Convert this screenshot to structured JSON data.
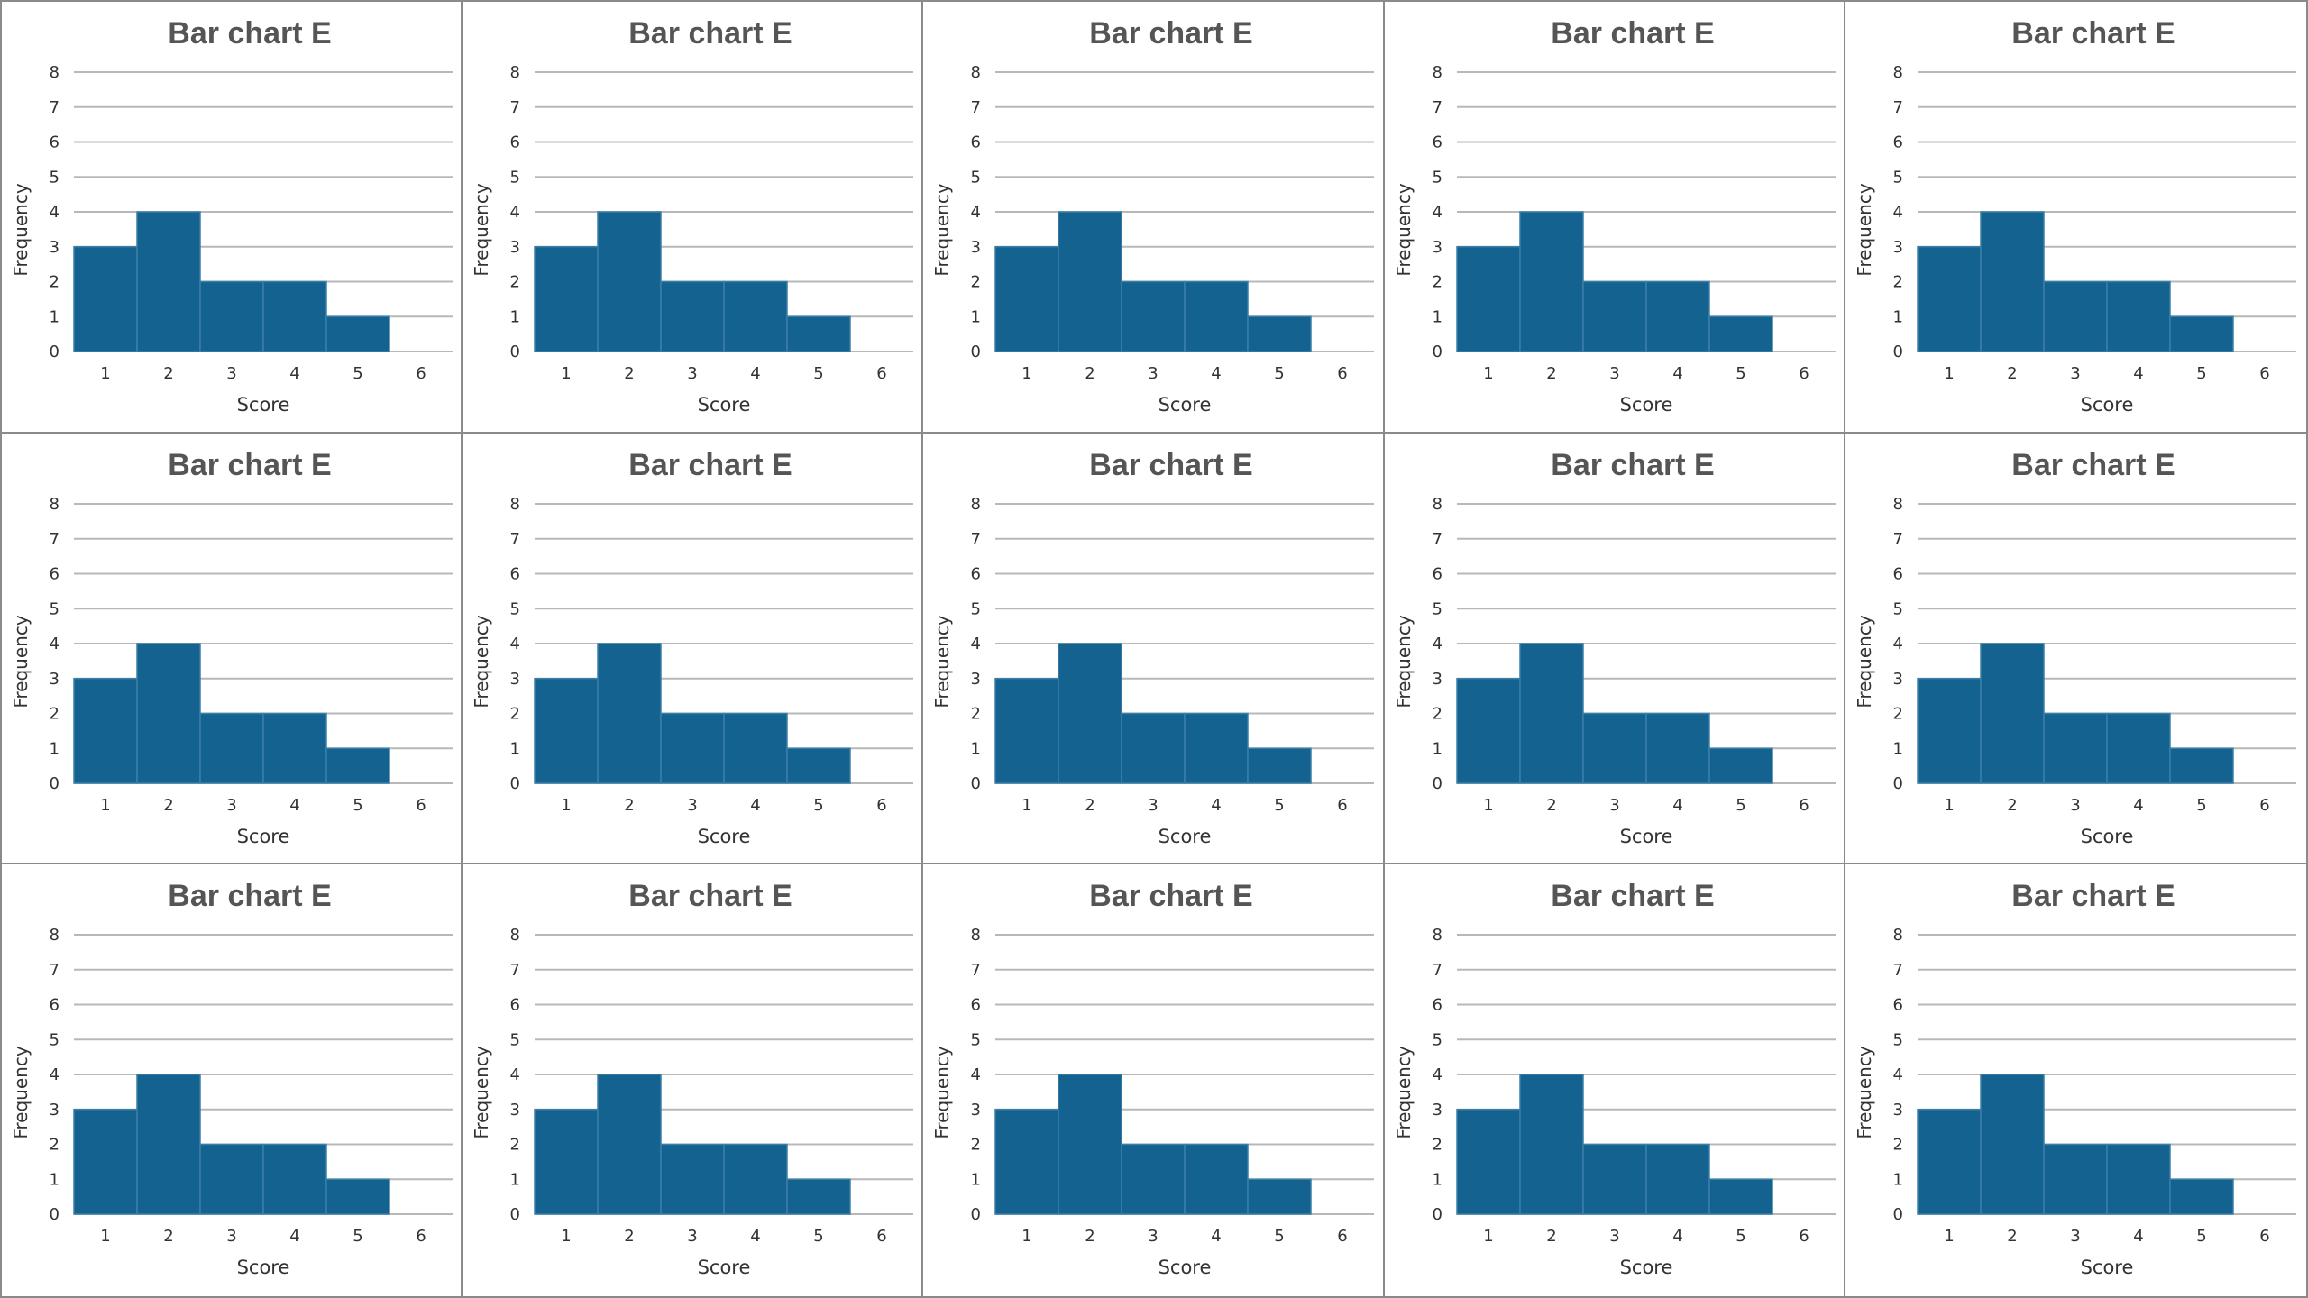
{
  "chart_data": [
    {
      "type": "bar",
      "title": "Bar chart E",
      "xlabel": "Score",
      "ylabel": "Frequency",
      "categories": [
        "1",
        "2",
        "3",
        "4",
        "5",
        "6"
      ],
      "values": [
        3,
        4,
        2,
        2,
        1,
        0
      ],
      "yticks": [
        "0",
        "1",
        "2",
        "3",
        "4",
        "5",
        "6",
        "7",
        "8"
      ],
      "ylim": [
        0,
        8
      ],
      "grid": "horizontal",
      "color": "#13628f"
    },
    {
      "type": "bar",
      "title": "Bar chart E",
      "xlabel": "Score",
      "ylabel": "Frequency",
      "categories": [
        "1",
        "2",
        "3",
        "4",
        "5",
        "6"
      ],
      "values": [
        3,
        4,
        2,
        2,
        1,
        0
      ],
      "yticks": [
        "0",
        "1",
        "2",
        "3",
        "4",
        "5",
        "6",
        "7",
        "8"
      ],
      "ylim": [
        0,
        8
      ],
      "grid": "horizontal",
      "color": "#13628f"
    },
    {
      "type": "bar",
      "title": "Bar chart E",
      "xlabel": "Score",
      "ylabel": "Frequency",
      "categories": [
        "1",
        "2",
        "3",
        "4",
        "5",
        "6"
      ],
      "values": [
        3,
        4,
        2,
        2,
        1,
        0
      ],
      "yticks": [
        "0",
        "1",
        "2",
        "3",
        "4",
        "5",
        "6",
        "7",
        "8"
      ],
      "ylim": [
        0,
        8
      ],
      "grid": "horizontal",
      "color": "#13628f"
    },
    {
      "type": "bar",
      "title": "Bar chart E",
      "xlabel": "Score",
      "ylabel": "Frequency",
      "categories": [
        "1",
        "2",
        "3",
        "4",
        "5",
        "6"
      ],
      "values": [
        3,
        4,
        2,
        2,
        1,
        0
      ],
      "yticks": [
        "0",
        "1",
        "2",
        "3",
        "4",
        "5",
        "6",
        "7",
        "8"
      ],
      "ylim": [
        0,
        8
      ],
      "grid": "horizontal",
      "color": "#13628f"
    },
    {
      "type": "bar",
      "title": "Bar chart E",
      "xlabel": "Score",
      "ylabel": "Frequency",
      "categories": [
        "1",
        "2",
        "3",
        "4",
        "5",
        "6"
      ],
      "values": [
        3,
        4,
        2,
        2,
        1,
        0
      ],
      "yticks": [
        "0",
        "1",
        "2",
        "3",
        "4",
        "5",
        "6",
        "7",
        "8"
      ],
      "ylim": [
        0,
        8
      ],
      "grid": "horizontal",
      "color": "#13628f"
    },
    {
      "type": "bar",
      "title": "Bar chart E",
      "xlabel": "Score",
      "ylabel": "Frequency",
      "categories": [
        "1",
        "2",
        "3",
        "4",
        "5",
        "6"
      ],
      "values": [
        3,
        4,
        2,
        2,
        1,
        0
      ],
      "yticks": [
        "0",
        "1",
        "2",
        "3",
        "4",
        "5",
        "6",
        "7",
        "8"
      ],
      "ylim": [
        0,
        8
      ],
      "grid": "horizontal",
      "color": "#13628f"
    },
    {
      "type": "bar",
      "title": "Bar chart E",
      "xlabel": "Score",
      "ylabel": "Frequency",
      "categories": [
        "1",
        "2",
        "3",
        "4",
        "5",
        "6"
      ],
      "values": [
        3,
        4,
        2,
        2,
        1,
        0
      ],
      "yticks": [
        "0",
        "1",
        "2",
        "3",
        "4",
        "5",
        "6",
        "7",
        "8"
      ],
      "ylim": [
        0,
        8
      ],
      "grid": "horizontal",
      "color": "#13628f"
    },
    {
      "type": "bar",
      "title": "Bar chart E",
      "xlabel": "Score",
      "ylabel": "Frequency",
      "categories": [
        "1",
        "2",
        "3",
        "4",
        "5",
        "6"
      ],
      "values": [
        3,
        4,
        2,
        2,
        1,
        0
      ],
      "yticks": [
        "0",
        "1",
        "2",
        "3",
        "4",
        "5",
        "6",
        "7",
        "8"
      ],
      "ylim": [
        0,
        8
      ],
      "grid": "horizontal",
      "color": "#13628f"
    },
    {
      "type": "bar",
      "title": "Bar chart E",
      "xlabel": "Score",
      "ylabel": "Frequency",
      "categories": [
        "1",
        "2",
        "3",
        "4",
        "5",
        "6"
      ],
      "values": [
        3,
        4,
        2,
        2,
        1,
        0
      ],
      "yticks": [
        "0",
        "1",
        "2",
        "3",
        "4",
        "5",
        "6",
        "7",
        "8"
      ],
      "ylim": [
        0,
        8
      ],
      "grid": "horizontal",
      "color": "#13628f"
    },
    {
      "type": "bar",
      "title": "Bar chart E",
      "xlabel": "Score",
      "ylabel": "Frequency",
      "categories": [
        "1",
        "2",
        "3",
        "4",
        "5",
        "6"
      ],
      "values": [
        3,
        4,
        2,
        2,
        1,
        0
      ],
      "yticks": [
        "0",
        "1",
        "2",
        "3",
        "4",
        "5",
        "6",
        "7",
        "8"
      ],
      "ylim": [
        0,
        8
      ],
      "grid": "horizontal",
      "color": "#13628f"
    },
    {
      "type": "bar",
      "title": "Bar chart E",
      "xlabel": "Score",
      "ylabel": "Frequency",
      "categories": [
        "1",
        "2",
        "3",
        "4",
        "5",
        "6"
      ],
      "values": [
        3,
        4,
        2,
        2,
        1,
        0
      ],
      "yticks": [
        "0",
        "1",
        "2",
        "3",
        "4",
        "5",
        "6",
        "7",
        "8"
      ],
      "ylim": [
        0,
        8
      ],
      "grid": "horizontal",
      "color": "#13628f"
    },
    {
      "type": "bar",
      "title": "Bar chart E",
      "xlabel": "Score",
      "ylabel": "Frequency",
      "categories": [
        "1",
        "2",
        "3",
        "4",
        "5",
        "6"
      ],
      "values": [
        3,
        4,
        2,
        2,
        1,
        0
      ],
      "yticks": [
        "0",
        "1",
        "2",
        "3",
        "4",
        "5",
        "6",
        "7",
        "8"
      ],
      "ylim": [
        0,
        8
      ],
      "grid": "horizontal",
      "color": "#13628f"
    },
    {
      "type": "bar",
      "title": "Bar chart E",
      "xlabel": "Score",
      "ylabel": "Frequency",
      "categories": [
        "1",
        "2",
        "3",
        "4",
        "5",
        "6"
      ],
      "values": [
        3,
        4,
        2,
        2,
        1,
        0
      ],
      "yticks": [
        "0",
        "1",
        "2",
        "3",
        "4",
        "5",
        "6",
        "7",
        "8"
      ],
      "ylim": [
        0,
        8
      ],
      "grid": "horizontal",
      "color": "#13628f"
    },
    {
      "type": "bar",
      "title": "Bar chart E",
      "xlabel": "Score",
      "ylabel": "Frequency",
      "categories": [
        "1",
        "2",
        "3",
        "4",
        "5",
        "6"
      ],
      "values": [
        3,
        4,
        2,
        2,
        1,
        0
      ],
      "yticks": [
        "0",
        "1",
        "2",
        "3",
        "4",
        "5",
        "6",
        "7",
        "8"
      ],
      "ylim": [
        0,
        8
      ],
      "grid": "horizontal",
      "color": "#13628f"
    },
    {
      "type": "bar",
      "title": "Bar chart E",
      "xlabel": "Score",
      "ylabel": "Frequency",
      "categories": [
        "1",
        "2",
        "3",
        "4",
        "5",
        "6"
      ],
      "values": [
        3,
        4,
        2,
        2,
        1,
        0
      ],
      "yticks": [
        "0",
        "1",
        "2",
        "3",
        "4",
        "5",
        "6",
        "7",
        "8"
      ],
      "ylim": [
        0,
        8
      ],
      "grid": "horizontal",
      "color": "#13628f"
    }
  ]
}
